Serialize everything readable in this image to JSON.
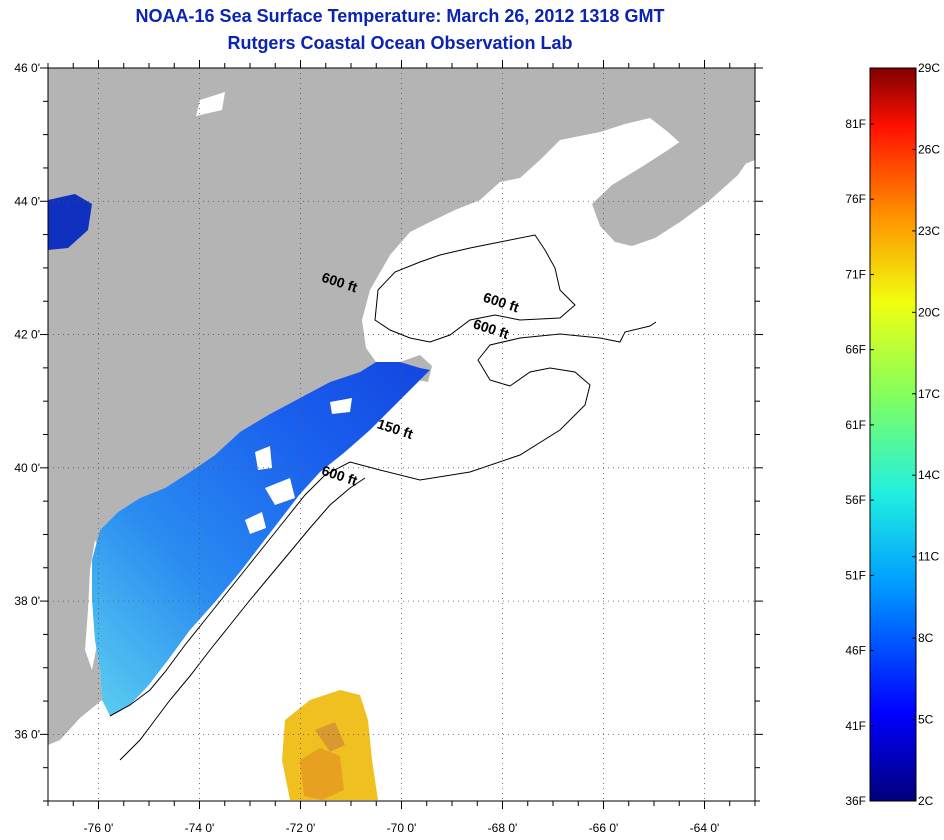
{
  "title": {
    "line1": "NOAA-16 Sea Surface Temperature:  March 26, 2012 1318 GMT",
    "line2": "Rutgers Coastal Ocean Observation Lab"
  },
  "map": {
    "lon_range": [
      -77,
      -63
    ],
    "lat_range": [
      35,
      46
    ],
    "lon_ticks": [
      {
        "value": -76,
        "label": "-76 0'"
      },
      {
        "value": -74,
        "label": "-74 0'"
      },
      {
        "value": -72,
        "label": "-72 0'"
      },
      {
        "value": -70,
        "label": "-70 0'"
      },
      {
        "value": -68,
        "label": "-68 0'"
      },
      {
        "value": -66,
        "label": "-66 0'"
      },
      {
        "value": -64,
        "label": "-64 0'"
      }
    ],
    "lat_ticks": [
      {
        "value": 46,
        "label": "46 0'"
      },
      {
        "value": 44,
        "label": "44 0'"
      },
      {
        "value": 42,
        "label": "42 0'"
      },
      {
        "value": 40,
        "label": "40 0'"
      },
      {
        "value": 38,
        "label": "38 0'"
      },
      {
        "value": 36,
        "label": "36 0'"
      }
    ],
    "contour_labels": [
      {
        "text": "600 ft",
        "lon": -71.6,
        "lat": 42.8
      },
      {
        "text": "600 ft",
        "lon": -68.4,
        "lat": 42.5
      },
      {
        "text": "600 ft",
        "lon": -68.6,
        "lat": 42.1
      },
      {
        "text": "150 ft",
        "lon": -70.5,
        "lat": 40.6
      },
      {
        "text": "600 ft",
        "lon": -71.6,
        "lat": 39.9
      }
    ],
    "colors": {
      "land": "#b4b4b4",
      "ocean_nodata": "#ffffff",
      "sst_cold": "#1a5ef0",
      "sst_cool": "#3aa0f0",
      "sst_warm": "#f0c020",
      "grid": "#555555"
    }
  },
  "colorbar": {
    "c_labels": [
      "29C",
      "26C",
      "23C",
      "20C",
      "17C",
      "14C",
      "11C",
      "8C",
      "5C",
      "2C"
    ],
    "f_labels": [
      "81F",
      "76F",
      "71F",
      "66F",
      "61F",
      "56F",
      "51F",
      "46F",
      "41F",
      "36F"
    ]
  }
}
